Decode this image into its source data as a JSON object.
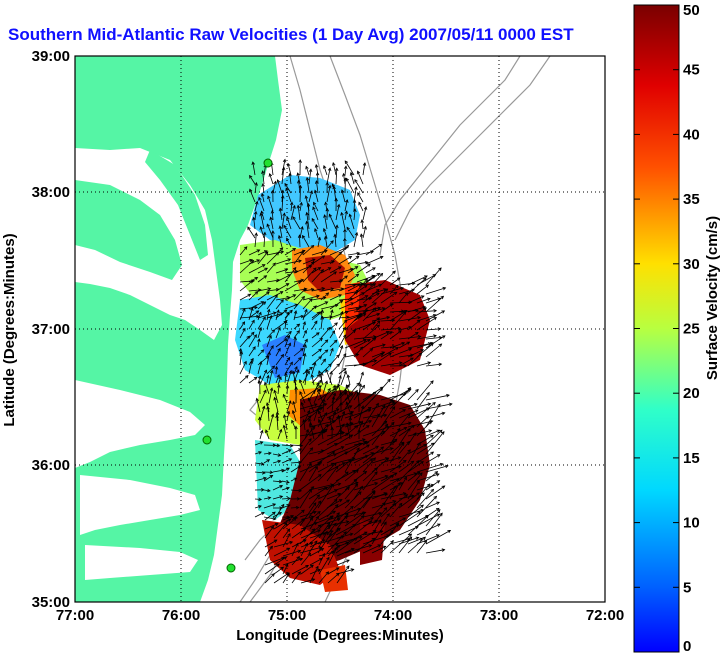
{
  "title": "Southern Mid-Atlantic Raw Velocities (1 Day Avg) 2007/05/11 0000 EST",
  "map": {
    "xlabel": "Longitude (Degrees:Minutes)",
    "ylabel": "Latitude (Degrees:Minutes)",
    "x_ticks": [
      "77:00",
      "76:00",
      "75:00",
      "74:00",
      "73:00",
      "72:00"
    ],
    "y_ticks": [
      "39:00",
      "38:00",
      "37:00",
      "36:00",
      "35:00"
    ],
    "land_color": "#55f5a5",
    "water_color": "#ffffff",
    "station_markers": 3
  },
  "colorbar": {
    "label": "Surface Velocity (cm/s)",
    "ticks": [
      "0",
      "5",
      "10",
      "15",
      "20",
      "25",
      "30",
      "35",
      "40",
      "45",
      "50"
    ],
    "min": 0,
    "max": 50,
    "colormap": "jet"
  }
}
